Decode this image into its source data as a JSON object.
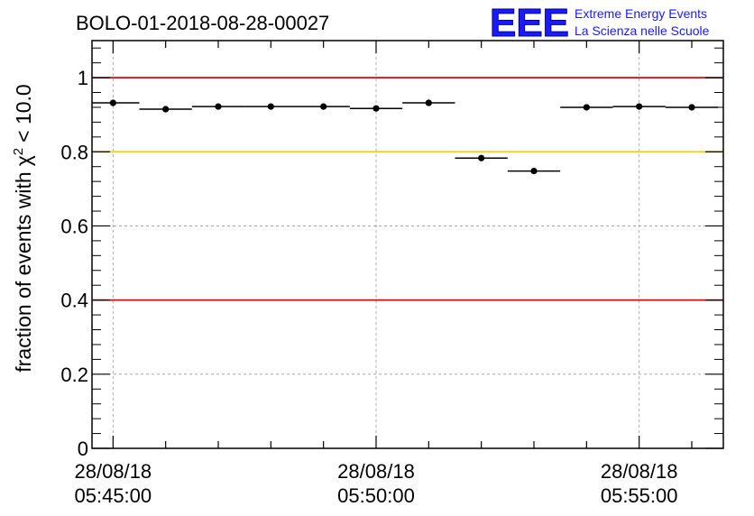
{
  "chart_data": {
    "type": "scatter",
    "title": "BOLO-01-2018-08-28-00027",
    "ylabel_prefix": "fraction of events with",
    "ylabel_symbol": "χ",
    "ylabel_superscript": "2",
    "ylabel_suffix": "< 10.0",
    "xlabel": "",
    "logo": {
      "text": "EEE",
      "line1": "Extreme Energy Events",
      "line2": "La Scienza nelle Scuole",
      "color": "#1a1aff"
    },
    "x_unit": "minutes after 28/08/18 05:45:00",
    "xlim": [
      -0.4,
      11.6
    ],
    "ylim": [
      0,
      1.1
    ],
    "x_ticks": [
      {
        "x": 0,
        "date": "28/08/18",
        "time": "05:45:00"
      },
      {
        "x": 5,
        "date": "28/08/18",
        "time": "05:50:00"
      },
      {
        "x": 10,
        "date": "28/08/18",
        "time": "05:55:00"
      }
    ],
    "y_ticks": [
      0,
      0.2,
      0.4,
      0.6,
      0.8,
      1
    ],
    "y_tick_labels": [
      "0",
      "0.2",
      "0.4",
      "0.6",
      "0.8",
      "1"
    ],
    "grid": true,
    "reference_lines": [
      {
        "y": 1.0,
        "color": "#ee0000"
      },
      {
        "y": 0.8,
        "color": "#ffcc00"
      },
      {
        "y": 0.4,
        "color": "#ee0000"
      }
    ],
    "series": [
      {
        "x": [
          0,
          1,
          2,
          3,
          4,
          5,
          6,
          7,
          8,
          9,
          10,
          11
        ],
        "values": [
          0.932,
          0.915,
          0.922,
          0.922,
          0.922,
          0.917,
          0.932,
          0.783,
          0.748,
          0.92,
          0.922,
          0.92
        ],
        "x_halfwidth": 0.5,
        "color": "#000000"
      }
    ]
  }
}
